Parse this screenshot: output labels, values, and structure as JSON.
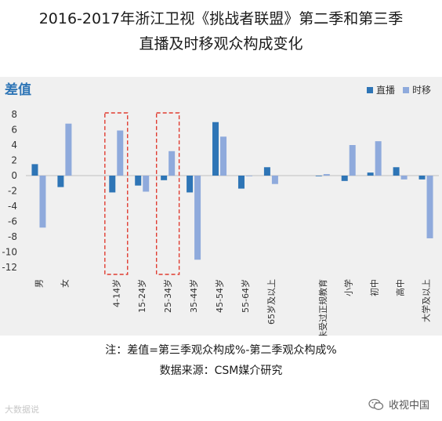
{
  "title": {
    "line1": "2016-2017年浙江卫视《挑战者联盟》第二季和第三季",
    "line2": "直播及时移观众构成变化"
  },
  "notes": {
    "formula": "注：差值=第三季观众构成%-第二季观众构成%",
    "source": "数据来源：CSM媒介研究"
  },
  "watermark_left": "大数据说",
  "watermark_right": "收视中国",
  "icons": {
    "watermark_right": "wechat-icon"
  },
  "colors": {
    "live": "#2e75b6",
    "timeshift": "#8faadc",
    "highlight": "#e03c31",
    "ylabel": "#2e75b6"
  },
  "chart_data": {
    "type": "bar",
    "ylabel": "差值",
    "ylim": [
      -12,
      8
    ],
    "yticks": [
      8,
      6,
      4,
      2,
      0,
      -2,
      -4,
      -6,
      -8,
      -10,
      -12
    ],
    "grid": false,
    "legend_position": "top-right",
    "categories": [
      "男",
      "女",
      "",
      "4-14岁",
      "15-24岁",
      "25-34岁",
      "35-44岁",
      "45-54岁",
      "55-64岁",
      "65岁及以上",
      "",
      "未受过正规教育",
      "小学",
      "初中",
      "高中",
      "大学及以上"
    ],
    "series": [
      {
        "name": "直播",
        "values": [
          1.5,
          -1.5,
          null,
          -2.2,
          -1.3,
          -0.6,
          -2.2,
          7.0,
          -1.7,
          1.1,
          null,
          0.0,
          -0.7,
          0.4,
          1.1,
          -0.5
        ]
      },
      {
        "name": "时移",
        "values": [
          -6.8,
          6.8,
          null,
          5.9,
          -2.1,
          3.2,
          -11.0,
          5.1,
          0.0,
          -1.1,
          null,
          0.2,
          4.0,
          4.5,
          -0.5,
          -8.2
        ]
      }
    ],
    "highlighted_categories": [
      "4-14岁",
      "25-34岁"
    ]
  }
}
